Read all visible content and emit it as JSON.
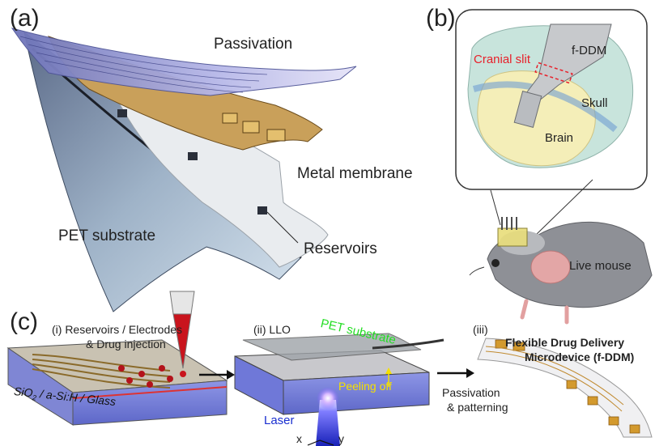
{
  "panels": {
    "a": {
      "tag": "(a)",
      "labels": {
        "passivation": "Passivation",
        "metal_membrane": "Metal membrane",
        "pet_substrate": "PET substrate",
        "reservoirs": "Reservoirs"
      }
    },
    "b": {
      "tag": "(b)",
      "labels": {
        "device": "f-DDM",
        "cranial_slit": "Cranial slit",
        "skull": "Skull",
        "brain": "Brain",
        "live_mouse": "Live mouse"
      }
    },
    "c": {
      "tag": "(c)",
      "step1": {
        "title_line1": "(i) Reservoirs / Electrodes",
        "title_line2": "& Drug injection",
        "substrate_stack": "SiO",
        "substrate_sub": "2",
        "substrate_rest": " / a-Si:H / Glass"
      },
      "step2": {
        "title": "(ii) LLO",
        "pet_substrate": "PET substrate",
        "peeling_off": "Peeling off",
        "laser": "Laser",
        "axis_x": "x",
        "axis_y": "y"
      },
      "step3": {
        "title": "(iii)",
        "device_line1": "Flexible Drug Delivery",
        "device_line2": "Microdevice (f-DDM)"
      },
      "transition": {
        "line1": "Passivation",
        "line2": "& patterning"
      }
    }
  },
  "colors": {
    "cranial_slit": "#e8202a",
    "pet_substrate_text": "#22dd22",
    "peeling_off_text": "#f5e000",
    "laser_text": "#1a2fd0",
    "gold": "#d39a2e",
    "blue_glass": "#7a86e0"
  }
}
